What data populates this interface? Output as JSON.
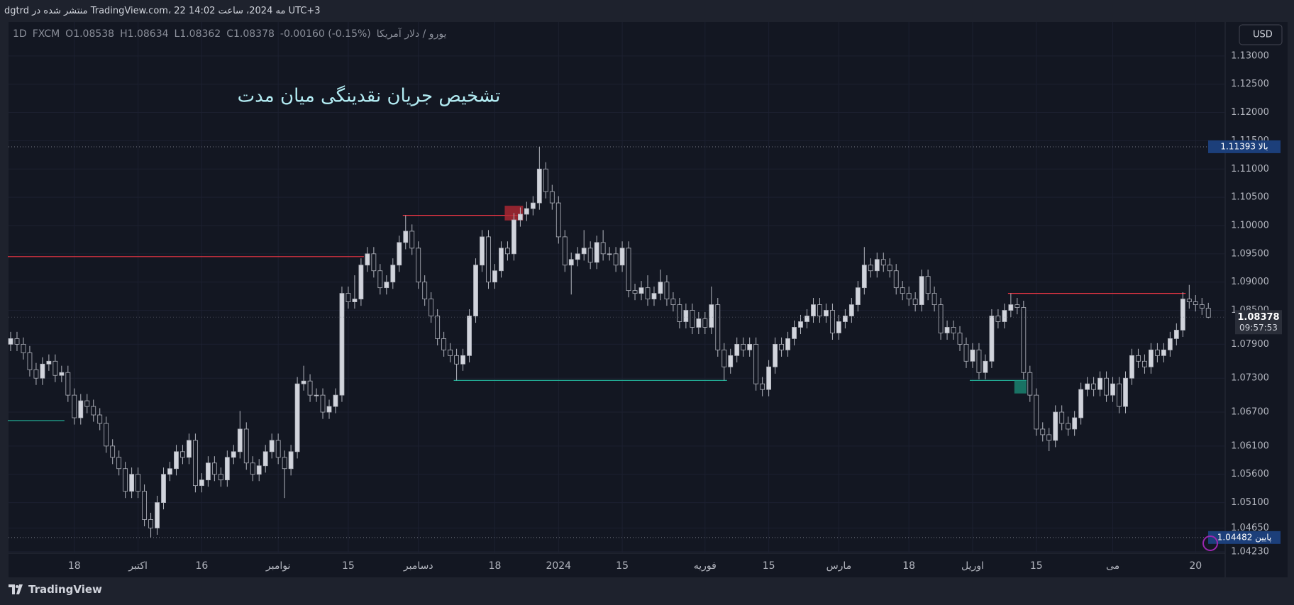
{
  "header": {
    "publisher_line": "dgtrd منتشر شده در TradingView.com، 22 مه 2024، ساعت 14:02 UTC+3"
  },
  "footer": {
    "brand": "TradingView"
  },
  "chart_data": {
    "type": "candlestick",
    "symbol": "یورو / دلار آمریکا",
    "interval": "1D",
    "exchange": "FXCM",
    "ohlc_labels": [
      "O1.08538",
      "H1.08634",
      "L1.08362",
      "C1.08378"
    ],
    "change_label": "-0.00160 (-0.15%)",
    "annotation": "تشخیص جریان نقدینگی میان مدت",
    "currency": "USD",
    "grid": true,
    "colors": {
      "up": "#d1d4dc",
      "down": "#131722",
      "wick": "#b2b5be"
    },
    "ylim": [
      1.0379,
      1.1355
    ],
    "yticks": [
      {
        "value": 1.13,
        "label": "1.13000"
      },
      {
        "value": 1.125,
        "label": "1.12500"
      },
      {
        "value": 1.12,
        "label": "1.12000"
      },
      {
        "value": 1.115,
        "label": "1.11500"
      },
      {
        "value": 1.11,
        "label": "1.11000"
      },
      {
        "value": 1.105,
        "label": "1.10500"
      },
      {
        "value": 1.1,
        "label": "1.10000"
      },
      {
        "value": 1.095,
        "label": "1.09500"
      },
      {
        "value": 1.09,
        "label": "1.09000"
      },
      {
        "value": 1.085,
        "label": "1.08500"
      },
      {
        "value": 1.079,
        "label": "1.07900"
      },
      {
        "value": 1.073,
        "label": "1.07300"
      },
      {
        "value": 1.067,
        "label": "1.06700"
      },
      {
        "value": 1.061,
        "label": "1.06100"
      },
      {
        "value": 1.056,
        "label": "1.05600"
      },
      {
        "value": 1.051,
        "label": "1.05100"
      },
      {
        "value": 1.0465,
        "label": "1.04650"
      },
      {
        "value": 1.0423,
        "label": "1.04230"
      }
    ],
    "categories": [
      null,
      null,
      null,
      null,
      null,
      null,
      null,
      null,
      null,
      null,
      "18",
      null,
      null,
      null,
      null,
      null,
      null,
      null,
      null,
      null,
      "اکتبر",
      null,
      null,
      null,
      null,
      null,
      null,
      null,
      null,
      null,
      "16",
      null,
      null,
      null,
      null,
      null,
      null,
      null,
      null,
      null,
      null,
      null,
      "نوامبر",
      null,
      null,
      null,
      null,
      null,
      null,
      null,
      null,
      null,
      null,
      "15",
      null,
      null,
      null,
      null,
      null,
      null,
      null,
      null,
      null,
      null,
      "دسامبر",
      null,
      null,
      null,
      null,
      null,
      null,
      null,
      null,
      null,
      null,
      null,
      "18",
      null,
      null,
      null,
      null,
      null,
      null,
      null,
      null,
      null,
      "2024",
      null,
      null,
      null,
      null,
      null,
      null,
      null,
      null,
      null,
      "15",
      null,
      null,
      null,
      null,
      null,
      null,
      null,
      null,
      null,
      null,
      null,
      null,
      "فوریه",
      null,
      null,
      null,
      null,
      null,
      null,
      null,
      null,
      null,
      "15",
      null,
      null,
      null,
      null,
      null,
      null,
      null,
      null,
      null,
      null,
      "مارس",
      null,
      null,
      null,
      null,
      null,
      null,
      null,
      null,
      null,
      null,
      "18",
      null,
      null,
      null,
      null,
      null,
      null,
      null,
      null,
      null,
      "اوریل",
      null,
      null,
      null,
      null,
      null,
      null,
      null,
      null,
      null,
      "15",
      null,
      null,
      null,
      null,
      null,
      null,
      null,
      null,
      null,
      null,
      null,
      "می",
      null,
      null,
      null,
      null,
      null,
      null,
      null,
      null,
      null,
      null,
      null,
      null,
      "20",
      null,
      null
    ],
    "candles": [
      [
        1.079,
        1.0812,
        1.0778,
        1.08
      ],
      [
        1.08,
        1.0812,
        1.0778,
        1.079
      ],
      [
        1.079,
        1.0802,
        1.0763,
        1.0775
      ],
      [
        1.0775,
        1.0787,
        1.0733,
        1.0745
      ],
      [
        1.0745,
        1.0757,
        1.0718,
        1.073
      ],
      [
        1.073,
        1.0767,
        1.0718,
        1.0755
      ],
      [
        1.0755,
        1.0772,
        1.0743,
        1.076
      ],
      [
        1.076,
        1.0772,
        1.0723,
        1.0735
      ],
      [
        1.0735,
        1.0752,
        1.0723,
        1.074
      ],
      [
        1.074,
        1.0752,
        1.0688,
        1.07
      ],
      [
        1.07,
        1.0712,
        1.0648,
        1.066
      ],
      [
        1.066,
        1.0702,
        1.0648,
        1.069
      ],
      [
        1.069,
        1.0702,
        1.0668,
        1.068
      ],
      [
        1.068,
        1.0692,
        1.0653,
        1.0665
      ],
      [
        1.0665,
        1.0677,
        1.0638,
        1.065
      ],
      [
        1.065,
        1.0662,
        1.0598,
        1.061
      ],
      [
        1.061,
        1.0622,
        1.0578,
        1.059
      ],
      [
        1.059,
        1.0602,
        1.0558,
        1.057
      ],
      [
        1.057,
        1.0582,
        1.0518,
        1.053
      ],
      [
        1.053,
        1.0572,
        1.0518,
        1.056
      ],
      [
        1.056,
        1.0572,
        1.0518,
        1.053
      ],
      [
        1.053,
        1.0542,
        1.0468,
        1.048
      ],
      [
        1.048,
        1.0492,
        1.04482,
        1.0465
      ],
      [
        1.0465,
        1.0522,
        1.0453,
        1.051
      ],
      [
        1.051,
        1.0572,
        1.0498,
        1.056
      ],
      [
        1.056,
        1.0582,
        1.0548,
        1.057
      ],
      [
        1.057,
        1.0612,
        1.0558,
        1.06
      ],
      [
        1.06,
        1.0612,
        1.0578,
        1.059
      ],
      [
        1.059,
        1.0632,
        1.0578,
        1.062
      ],
      [
        1.062,
        1.0632,
        1.0528,
        1.054
      ],
      [
        1.054,
        1.0562,
        1.0528,
        1.055
      ],
      [
        1.055,
        1.0592,
        1.0538,
        1.058
      ],
      [
        1.058,
        1.0592,
        1.0548,
        1.056
      ],
      [
        1.056,
        1.0572,
        1.0538,
        1.055
      ],
      [
        1.055,
        1.0602,
        1.0538,
        1.059
      ],
      [
        1.059,
        1.0612,
        1.0578,
        1.06
      ],
      [
        1.06,
        1.0672,
        1.0588,
        1.064
      ],
      [
        1.064,
        1.0652,
        1.0568,
        1.058
      ],
      [
        1.058,
        1.0592,
        1.0548,
        1.056
      ],
      [
        1.056,
        1.0587,
        1.0548,
        1.0575
      ],
      [
        1.0575,
        1.0612,
        1.0563,
        1.06
      ],
      [
        1.06,
        1.0632,
        1.0588,
        1.062
      ],
      [
        1.062,
        1.0632,
        1.0578,
        1.059
      ],
      [
        1.059,
        1.0602,
        1.0518,
        1.057
      ],
      [
        1.057,
        1.0612,
        1.0558,
        1.06
      ],
      [
        1.06,
        1.0732,
        1.0588,
        1.072
      ],
      [
        1.072,
        1.0752,
        1.0708,
        1.0725
      ],
      [
        1.0725,
        1.0737,
        1.0688,
        1.07
      ],
      [
        1.07,
        1.0712,
        1.0688,
        1.07
      ],
      [
        1.07,
        1.0712,
        1.0658,
        1.067
      ],
      [
        1.067,
        1.0692,
        1.0658,
        1.068
      ],
      [
        1.068,
        1.0712,
        1.0668,
        1.07
      ],
      [
        1.07,
        1.0892,
        1.0688,
        1.088
      ],
      [
        1.088,
        1.0892,
        1.0853,
        1.0865
      ],
      [
        1.0865,
        1.0912,
        1.0853,
        1.087
      ],
      [
        1.087,
        1.0942,
        1.0858,
        1.093
      ],
      [
        1.093,
        1.0962,
        1.0918,
        1.095
      ],
      [
        1.095,
        1.0962,
        1.0908,
        1.092
      ],
      [
        1.092,
        1.0932,
        1.0878,
        1.089
      ],
      [
        1.089,
        1.0912,
        1.0878,
        1.09
      ],
      [
        1.09,
        1.0942,
        1.0888,
        1.093
      ],
      [
        1.093,
        1.0982,
        1.0918,
        1.097
      ],
      [
        1.097,
        1.1018,
        1.0958,
        1.099
      ],
      [
        1.099,
        1.1002,
        1.0948,
        1.096
      ],
      [
        1.096,
        1.0972,
        1.0888,
        1.09
      ],
      [
        1.09,
        1.0912,
        1.0858,
        1.087
      ],
      [
        1.087,
        1.0882,
        1.0828,
        1.084
      ],
      [
        1.084,
        1.0852,
        1.0788,
        1.08
      ],
      [
        1.08,
        1.0812,
        1.0768,
        1.078
      ],
      [
        1.078,
        1.0792,
        1.0758,
        1.077
      ],
      [
        1.077,
        1.0782,
        1.0726,
        1.0755
      ],
      [
        1.0755,
        1.0782,
        1.0743,
        1.077
      ],
      [
        1.077,
        1.0852,
        1.0758,
        1.084
      ],
      [
        1.084,
        1.0942,
        1.0828,
        1.093
      ],
      [
        1.093,
        1.0992,
        1.0918,
        1.098
      ],
      [
        1.098,
        1.0992,
        1.0888,
        1.09
      ],
      [
        1.09,
        1.0932,
        1.0888,
        1.092
      ],
      [
        1.092,
        1.0972,
        1.0908,
        1.096
      ],
      [
        1.096,
        1.0972,
        1.0938,
        1.095
      ],
      [
        1.095,
        1.1022,
        1.0938,
        1.101
      ],
      [
        1.101,
        1.1032,
        1.0998,
        1.102
      ],
      [
        1.102,
        1.1042,
        1.1008,
        1.103
      ],
      [
        1.103,
        1.1052,
        1.1018,
        1.104
      ],
      [
        1.104,
        1.11393,
        1.1028,
        1.11
      ],
      [
        1.11,
        1.1112,
        1.1048,
        1.106
      ],
      [
        1.106,
        1.1072,
        1.1028,
        1.104
      ],
      [
        1.104,
        1.1052,
        1.0968,
        1.098
      ],
      [
        1.098,
        1.0992,
        1.0918,
        1.093
      ],
      [
        1.093,
        1.0952,
        1.0878,
        1.094
      ],
      [
        1.094,
        1.0962,
        1.0928,
        1.095
      ],
      [
        1.095,
        1.0992,
        1.0938,
        1.096
      ],
      [
        1.096,
        1.0972,
        1.0923,
        1.0935
      ],
      [
        1.0935,
        1.0982,
        1.0923,
        1.097
      ],
      [
        1.097,
        1.0992,
        1.0938,
        1.095
      ],
      [
        1.095,
        1.0962,
        1.0938,
        1.095
      ],
      [
        1.095,
        1.0962,
        1.0918,
        1.093
      ],
      [
        1.093,
        1.0972,
        1.0918,
        1.096
      ],
      [
        1.096,
        1.0972,
        1.0873,
        1.0885
      ],
      [
        1.0885,
        1.0897,
        1.0868,
        1.088
      ],
      [
        1.088,
        1.0902,
        1.0868,
        1.089
      ],
      [
        1.089,
        1.0912,
        1.0858,
        1.087
      ],
      [
        1.087,
        1.0892,
        1.0858,
        1.088
      ],
      [
        1.088,
        1.0922,
        1.0868,
        1.09
      ],
      [
        1.09,
        1.0912,
        1.0858,
        1.087
      ],
      [
        1.087,
        1.0882,
        1.0848,
        1.086
      ],
      [
        1.086,
        1.0872,
        1.0818,
        1.083
      ],
      [
        1.083,
        1.0862,
        1.0818,
        1.085
      ],
      [
        1.085,
        1.0862,
        1.0808,
        1.082
      ],
      [
        1.082,
        1.0847,
        1.0808,
        1.0835
      ],
      [
        1.0835,
        1.0847,
        1.0808,
        1.082
      ],
      [
        1.082,
        1.0892,
        1.0808,
        1.086
      ],
      [
        1.086,
        1.0872,
        1.0768,
        1.078
      ],
      [
        1.078,
        1.0792,
        1.0726,
        1.075
      ],
      [
        1.075,
        1.0782,
        1.0738,
        1.077
      ],
      [
        1.077,
        1.0802,
        1.0758,
        1.079
      ],
      [
        1.079,
        1.0802,
        1.0768,
        1.078
      ],
      [
        1.078,
        1.0802,
        1.0768,
        1.079
      ],
      [
        1.079,
        1.0802,
        1.0708,
        1.072
      ],
      [
        1.072,
        1.0732,
        1.0698,
        1.071
      ],
      [
        1.071,
        1.0762,
        1.0698,
        1.075
      ],
      [
        1.075,
        1.0802,
        1.0738,
        1.079
      ],
      [
        1.079,
        1.0802,
        1.0768,
        1.078
      ],
      [
        1.078,
        1.0812,
        1.0768,
        1.08
      ],
      [
        1.08,
        1.0832,
        1.0788,
        1.082
      ],
      [
        1.082,
        1.0842,
        1.0808,
        1.083
      ],
      [
        1.083,
        1.0852,
        1.0818,
        1.084
      ],
      [
        1.084,
        1.0872,
        1.0828,
        1.086
      ],
      [
        1.086,
        1.0872,
        1.0828,
        1.084
      ],
      [
        1.084,
        1.0862,
        1.0828,
        1.085
      ],
      [
        1.085,
        1.0862,
        1.0798,
        1.081
      ],
      [
        1.081,
        1.0842,
        1.0798,
        1.083
      ],
      [
        1.083,
        1.0852,
        1.0818,
        1.084
      ],
      [
        1.084,
        1.0872,
        1.0828,
        1.086
      ],
      [
        1.086,
        1.0902,
        1.0848,
        1.089
      ],
      [
        1.089,
        1.0962,
        1.0878,
        1.093
      ],
      [
        1.093,
        1.0942,
        1.0908,
        1.092
      ],
      [
        1.092,
        1.0952,
        1.0908,
        1.094
      ],
      [
        1.094,
        1.0952,
        1.0918,
        1.093
      ],
      [
        1.093,
        1.0942,
        1.0908,
        1.092
      ],
      [
        1.092,
        1.0932,
        1.0878,
        1.089
      ],
      [
        1.089,
        1.0902,
        1.0868,
        1.088
      ],
      [
        1.088,
        1.0892,
        1.0858,
        1.087
      ],
      [
        1.087,
        1.0882,
        1.0848,
        1.086
      ],
      [
        1.086,
        1.0922,
        1.0848,
        1.091
      ],
      [
        1.091,
        1.0922,
        1.0868,
        1.088
      ],
      [
        1.088,
        1.0892,
        1.0848,
        1.086
      ],
      [
        1.086,
        1.0872,
        1.0798,
        1.081
      ],
      [
        1.081,
        1.0832,
        1.0798,
        1.082
      ],
      [
        1.082,
        1.0832,
        1.0798,
        1.081
      ],
      [
        1.081,
        1.0822,
        1.0778,
        1.079
      ],
      [
        1.079,
        1.0802,
        1.0748,
        1.076
      ],
      [
        1.076,
        1.0792,
        1.0748,
        1.078
      ],
      [
        1.078,
        1.0792,
        1.0728,
        1.074
      ],
      [
        1.074,
        1.0772,
        1.0728,
        1.076
      ],
      [
        1.076,
        1.0852,
        1.0748,
        1.084
      ],
      [
        1.084,
        1.0852,
        1.0818,
        1.083
      ],
      [
        1.083,
        1.0862,
        1.0818,
        1.085
      ],
      [
        1.085,
        1.088,
        1.0838,
        1.086
      ],
      [
        1.086,
        1.0872,
        1.0843,
        1.0855
      ],
      [
        1.0855,
        1.0867,
        1.0728,
        1.074
      ],
      [
        1.074,
        1.0752,
        1.0688,
        1.07
      ],
      [
        1.07,
        1.0712,
        1.0628,
        1.064
      ],
      [
        1.064,
        1.0652,
        1.0618,
        1.063
      ],
      [
        1.063,
        1.0642,
        1.0601,
        1.062
      ],
      [
        1.062,
        1.0682,
        1.0608,
        1.067
      ],
      [
        1.067,
        1.0682,
        1.0638,
        1.065
      ],
      [
        1.065,
        1.0662,
        1.0628,
        1.064
      ],
      [
        1.064,
        1.0672,
        1.0628,
        1.066
      ],
      [
        1.066,
        1.0722,
        1.0648,
        1.071
      ],
      [
        1.071,
        1.0732,
        1.0698,
        1.072
      ],
      [
        1.072,
        1.0732,
        1.0698,
        1.071
      ],
      [
        1.071,
        1.0742,
        1.0698,
        1.073
      ],
      [
        1.073,
        1.0742,
        1.0688,
        1.07
      ],
      [
        1.07,
        1.0732,
        1.0688,
        1.072
      ],
      [
        1.072,
        1.0732,
        1.0668,
        1.068
      ],
      [
        1.068,
        1.0742,
        1.0668,
        1.073
      ],
      [
        1.073,
        1.0782,
        1.0718,
        1.077
      ],
      [
        1.077,
        1.0782,
        1.0748,
        1.076
      ],
      [
        1.076,
        1.0772,
        1.0738,
        1.075
      ],
      [
        1.075,
        1.0792,
        1.0738,
        1.078
      ],
      [
        1.078,
        1.0792,
        1.0758,
        1.077
      ],
      [
        1.077,
        1.0792,
        1.0758,
        1.078
      ],
      [
        1.078,
        1.0812,
        1.0768,
        1.08
      ],
      [
        1.08,
        1.0827,
        1.0788,
        1.0815
      ],
      [
        1.0815,
        1.0882,
        1.0803,
        1.087
      ],
      [
        1.087,
        1.0895,
        1.0853,
        1.0865
      ],
      [
        1.0865,
        1.0877,
        1.0848,
        1.086
      ],
      [
        1.086,
        1.0872,
        1.0842,
        1.0854
      ],
      [
        1.08538,
        1.08634,
        1.08362,
        1.08378
      ]
    ],
    "levels": [
      {
        "price": 1.0945,
        "color": "#f23645"
      },
      {
        "price": 1.1018,
        "color": "#f23645"
      },
      {
        "price": 1.088,
        "color": "#f23645"
      },
      {
        "price": 1.0655,
        "color": "#22ab94"
      },
      {
        "price": 1.0726,
        "color": "#22ab94"
      },
      {
        "price": 1.0726,
        "color": "#22ab94"
      }
    ],
    "zones": [
      {
        "top": 1.1035,
        "bottom": 1.1009,
        "color": "#b22833"
      },
      {
        "top": 1.0726,
        "bottom": 1.0703,
        "color": "#1b8a75"
      }
    ],
    "high_marker": {
      "value": 1.11393,
      "label": "بالا 1.11393"
    },
    "low_marker": {
      "value": 1.04482,
      "label": "پایین 1.04482"
    },
    "last_price": 1.08378,
    "countdown": "09:57:53"
  }
}
